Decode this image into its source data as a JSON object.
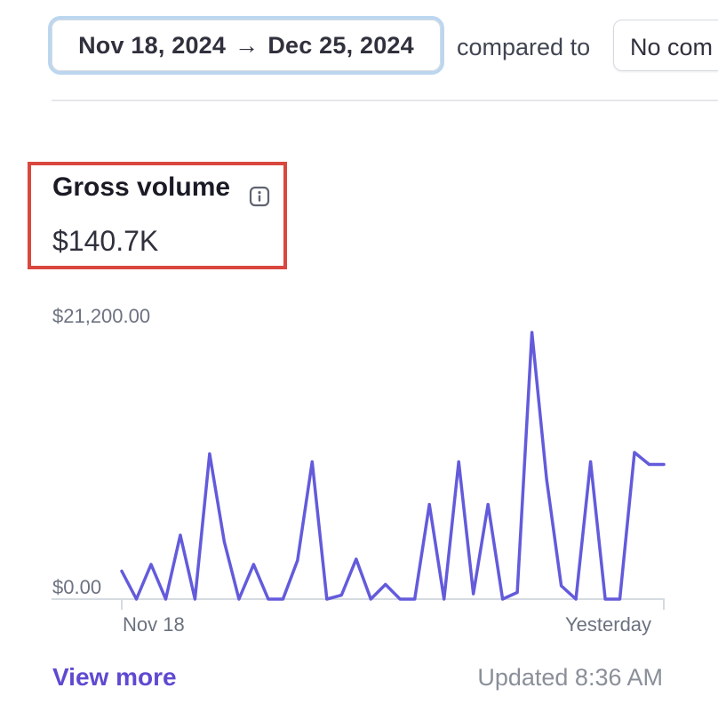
{
  "header": {
    "date_start": "Nov 18, 2024",
    "date_arrow": "→",
    "date_end": "Dec 25, 2024",
    "compared_label": "compared to",
    "compare_value": "No com"
  },
  "metric": {
    "title": "Gross volume",
    "value": "$140.7K"
  },
  "chart_data": {
    "type": "line",
    "y_top_label": "$21,200.00",
    "y_bottom_label": "$0.00",
    "x_start_label": "Nov 18",
    "x_end_label": "Yesterday",
    "ylim": [
      0,
      21200
    ],
    "color": "#635bdb",
    "values": [
      2100,
      0,
      2600,
      0,
      4800,
      0,
      10900,
      4300,
      0,
      2600,
      0,
      0,
      2900,
      10300,
      0,
      300,
      3000,
      0,
      1100,
      0,
      0,
      7100,
      0,
      10300,
      400,
      7100,
      0,
      500,
      20000,
      9000,
      1000,
      0,
      10300,
      0,
      0,
      11000,
      10100,
      10100
    ]
  },
  "footer": {
    "view_more": "View more",
    "updated": "Updated 8:36 AM"
  },
  "colors": {
    "accent": "#635bdb",
    "highlight": "#d9473e",
    "link": "#5e4ad1"
  }
}
